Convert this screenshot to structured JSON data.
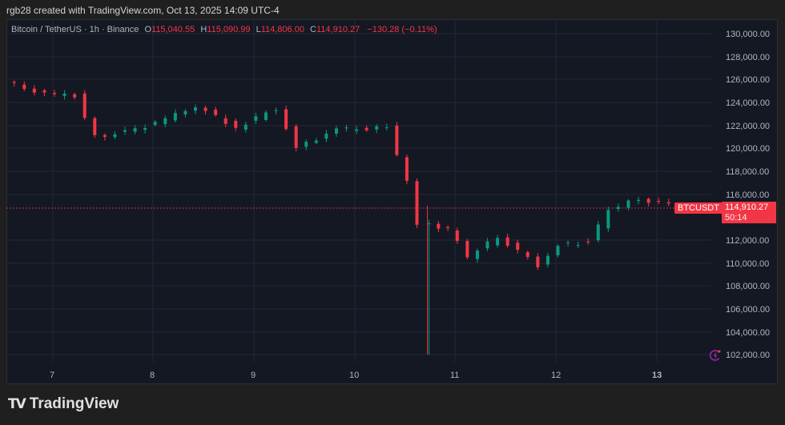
{
  "header": {
    "credit": "rgb28 created with TradingView.com, Oct 13, 2025 14:09 UTC-4"
  },
  "legend": {
    "symbol": "Bitcoin / TetherUS · 1h · Binance",
    "open_label": "O",
    "open": "115,040.55",
    "high_label": "H",
    "high": "115,090.99",
    "low_label": "L",
    "low": "114,806.00",
    "close_label": "C",
    "close": "114,910.27",
    "change": "−130.28 (−0.11%)"
  },
  "price_tag": {
    "symbol": "BTCUSDT",
    "price": "114,910.27",
    "countdown": "50:14"
  },
  "icons": {
    "alert": "lightning-alert-icon"
  },
  "brand": {
    "logo": "TV",
    "name": "TradingView"
  },
  "colors": {
    "up": "#089981",
    "down": "#f23645",
    "bg": "#141823",
    "grid": "#232734",
    "text": "#b2b5be"
  },
  "chart_data": {
    "type": "candlestick",
    "title": "Bitcoin / TetherUS · 1h · Binance",
    "xlabel": "",
    "ylabel": "",
    "ylim": [
      101000,
      131000
    ],
    "grid": true,
    "yticks": [
      130000,
      128000,
      126000,
      124000,
      122000,
      120000,
      118000,
      116000,
      112000,
      110000,
      108000,
      106000,
      104000,
      102000
    ],
    "ytick_labels": [
      "130,000.00",
      "128,000.00",
      "126,000.00",
      "124,000.00",
      "122,000.00",
      "120,000.00",
      "118,000.00",
      "116,000.00",
      "112,000.00",
      "110,000.00",
      "108,000.00",
      "106,000.00",
      "104,000.00",
      "102,000.00"
    ],
    "xticks": [
      "7",
      "8",
      "9",
      "10",
      "11",
      "12",
      "13"
    ],
    "last_price": 114910.27,
    "ohlc_last": {
      "open": 115040.55,
      "high": 115090.99,
      "low": 114806.0,
      "close": 114910.27
    },
    "approx_close_path": [
      {
        "day": "6.6",
        "close": 125800
      },
      {
        "day": "7.0",
        "close": 124700
      },
      {
        "day": "7.3",
        "close": 124600
      },
      {
        "day": "7.5",
        "close": 121000
      },
      {
        "day": "7.8",
        "close": 121400
      },
      {
        "day": "8.2",
        "close": 122500
      },
      {
        "day": "8.5",
        "close": 123700
      },
      {
        "day": "8.9",
        "close": 121800
      },
      {
        "day": "9.3",
        "close": 123500
      },
      {
        "day": "9.5",
        "close": 120100
      },
      {
        "day": "9.9",
        "close": 121600
      },
      {
        "day": "10.4",
        "close": 121800
      },
      {
        "day": "10.6",
        "close": 117000
      },
      {
        "day": "10.7",
        "close": 113500
      },
      {
        "day": "10.72",
        "low": 102000
      },
      {
        "day": "11.0",
        "close": 113000
      },
      {
        "day": "11.2",
        "close": 110500
      },
      {
        "day": "11.5",
        "close": 112300
      },
      {
        "day": "11.9",
        "close": 109800
      },
      {
        "day": "12.1",
        "close": 111600
      },
      {
        "day": "12.4",
        "close": 111800
      },
      {
        "day": "12.6",
        "close": 114600
      },
      {
        "day": "12.9",
        "close": 115600
      },
      {
        "day": "13.3",
        "close": 114900
      }
    ]
  }
}
